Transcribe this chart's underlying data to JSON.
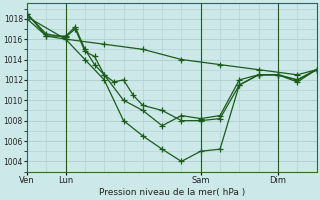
{
  "bg_color": "#cde8e8",
  "grid_color": "#b0cccc",
  "line_color": "#1a5c1a",
  "title": "Pression niveau de la mer( hPa )",
  "xlabel_ticks": [
    "Ven",
    "Lun",
    "Sam",
    "Dim"
  ],
  "xlabel_tick_positions": [
    0,
    8,
    36,
    52
  ],
  "ylim": [
    1003.0,
    1019.5
  ],
  "yticks": [
    1004,
    1006,
    1008,
    1010,
    1012,
    1014,
    1016,
    1018
  ],
  "xlim": [
    0,
    60
  ],
  "vline_positions": [
    8,
    36,
    52
  ],
  "series1_x": [
    0,
    4,
    8,
    10,
    12,
    14,
    16,
    18,
    20,
    22,
    24,
    28,
    32,
    36,
    40,
    44,
    48,
    52,
    56,
    60
  ],
  "series1_y": [
    1018.5,
    1016.5,
    1016.2,
    1017.0,
    1014.8,
    1014.3,
    1012.5,
    1011.8,
    1012.0,
    1010.5,
    1009.5,
    1009.0,
    1008.0,
    1008.0,
    1008.2,
    1011.5,
    1012.5,
    1012.5,
    1012.0,
    1013.0
  ],
  "series2_x": [
    0,
    4,
    8,
    10,
    12,
    14,
    16,
    20,
    24,
    28,
    32,
    36,
    40,
    44,
    48,
    52,
    56,
    60
  ],
  "series2_y": [
    1018.0,
    1016.3,
    1016.3,
    1017.2,
    1015.0,
    1013.5,
    1012.5,
    1010.0,
    1009.0,
    1007.5,
    1008.5,
    1008.2,
    1008.5,
    1012.0,
    1012.5,
    1012.5,
    1011.8,
    1013.0
  ],
  "series3_x": [
    0,
    4,
    8,
    12,
    16,
    20,
    24,
    28,
    32,
    36,
    40,
    44,
    48,
    52,
    56,
    60
  ],
  "series3_y": [
    1018.5,
    1016.3,
    1016.0,
    1014.0,
    1012.0,
    1008.0,
    1006.5,
    1005.2,
    1004.0,
    1005.0,
    1005.2,
    1011.5,
    1012.5,
    1012.5,
    1012.0,
    1013.0
  ],
  "series4_x": [
    0,
    8,
    16,
    24,
    32,
    40,
    48,
    56,
    60
  ],
  "series4_y": [
    1018.2,
    1016.0,
    1015.5,
    1015.0,
    1014.0,
    1013.5,
    1013.0,
    1012.5,
    1013.0
  ]
}
